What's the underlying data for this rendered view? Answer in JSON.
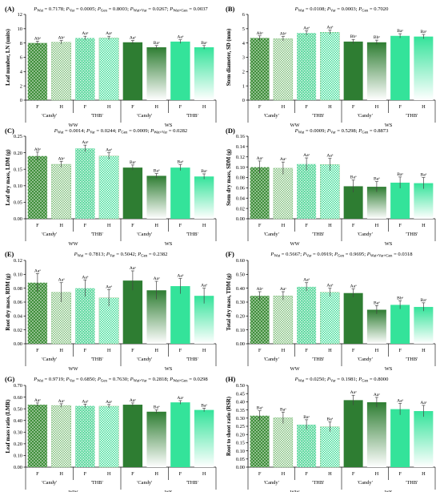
{
  "colors": {
    "ww_dark": "#3f8f3a",
    "ww_light": "#9fd39a",
    "ws_dark": "#2e7d32",
    "ws_mint": "#34e39a",
    "pattern_dot": "#ffffff"
  },
  "category_labels": [
    "F",
    "H",
    "F",
    "H",
    "F",
    "H",
    "F",
    "H"
  ],
  "group_labels": [
    "'Candy'",
    "'THB'",
    "'Candy'",
    "'THB'"
  ],
  "treatment_labels": [
    "WW",
    "WS"
  ],
  "chart_data": [
    {
      "id": "A",
      "letter": "(A)",
      "type": "bar",
      "stats_text": "P_Wat = 0.7178; P_Var = 0.0005; P_Gen = 0.8003; P_Wat×Var = 0.0267; P_Wat×Gen = 0.0037",
      "ylabel": "Leaf number, LN (units)",
      "ylim": [
        0,
        12
      ],
      "yticks": [
        0,
        2,
        4,
        6,
        8,
        10,
        12
      ],
      "tick_labels": [
        "0",
        "2",
        "4",
        "6",
        "8",
        "10",
        "12"
      ],
      "values": [
        8.0,
        8.1,
        8.7,
        8.7,
        8.1,
        7.4,
        8.2,
        7.4
      ],
      "errors": [
        0.25,
        0.25,
        0.25,
        0.25,
        0.25,
        0.25,
        0.25,
        0.25
      ],
      "letters": [
        "Abᵃ",
        "Abᵃ",
        "Aaᵃ",
        "Aaᵃ",
        "Aaᵃ",
        "Baᵃ",
        "Aaᵃ",
        "Baᵃ"
      ]
    },
    {
      "id": "B",
      "letter": "(B)",
      "type": "bar",
      "stats_text": "P_Wat = 0.0108; P_Var = 0.0003; P_Gen = 0.7020",
      "ylabel": "Stem diameter, SD (mm)",
      "ylim": [
        0,
        6
      ],
      "yticks": [
        0,
        1,
        2,
        3,
        4,
        5,
        6
      ],
      "tick_labels": [
        "0",
        "1",
        "2",
        "3",
        "4",
        "5",
        "6"
      ],
      "values": [
        4.35,
        4.3,
        4.7,
        4.75,
        4.1,
        4.05,
        4.5,
        4.45
      ],
      "errors": [
        0.15,
        0.15,
        0.15,
        0.15,
        0.15,
        0.15,
        0.15,
        0.15
      ],
      "letters": [
        "Abᵃ",
        "Abᵃ",
        "Aaᵃ",
        "Aaᵃ",
        "Bbᵃ",
        "Bbᵃ",
        "Baᵃ",
        "Baᵃ"
      ]
    },
    {
      "id": "C",
      "letter": "(C)",
      "type": "bar",
      "stats_text": "P_Wat = 0.0014; P_Var = 0.0244; P_Gen = 0.0009; P_Wat×Var = 0.0282",
      "ylabel": "Leaf dry mass, LDM (g)",
      "ylim": [
        0,
        0.25
      ],
      "yticks": [
        0,
        0.05,
        0.1,
        0.15,
        0.2,
        0.25
      ],
      "tick_labels": [
        "0.00",
        "0.05",
        "0.10",
        "0.15",
        "0.20",
        "0.25"
      ],
      "values": [
        0.19,
        0.165,
        0.213,
        0.19,
        0.155,
        0.13,
        0.155,
        0.128
      ],
      "errors": [
        0.012,
        0.009,
        0.01,
        0.01,
        0.008,
        0.007,
        0.009,
        0.008
      ],
      "letters": [
        "Abᵃ",
        "Abᵃ",
        "Aaᵃ",
        "Aaᵃ",
        "Baᵃ",
        "Baᵃ",
        "Baᵃ",
        "Baᵃ"
      ]
    },
    {
      "id": "D",
      "letter": "(D)",
      "type": "bar",
      "stats_text": "P_Wat = 0.0009; P_Var = 0.5298; P_Gen = 0.8873",
      "ylabel": "Stem dry mass, SDM (g)",
      "ylim": [
        0,
        0.16
      ],
      "yticks": [
        0,
        0.02,
        0.04,
        0.06,
        0.08,
        0.1,
        0.12,
        0.14,
        0.16
      ],
      "tick_labels": [
        "0.00",
        "0.02",
        "0.04",
        "0.06",
        "0.08",
        "0.10",
        "0.12",
        "0.14",
        "0.16"
      ],
      "values": [
        0.1,
        0.098,
        0.106,
        0.105,
        0.063,
        0.062,
        0.07,
        0.069
      ],
      "errors": [
        0.012,
        0.012,
        0.012,
        0.012,
        0.012,
        0.01,
        0.011,
        0.011
      ],
      "letters": [
        "Aaᵃ",
        "Aaᵃ",
        "Aaᵃ",
        "Aaᵃ",
        "Baᵃ",
        "Baᵃ",
        "Baᵃ",
        "Baᵃ"
      ]
    },
    {
      "id": "E",
      "letter": "(E)",
      "type": "bar",
      "stats_text": "P_Wat = 0.7813; P_Var = 0.5042; P_Gen = 0.2382",
      "ylabel": "Root dry mass, RDM (g)",
      "ylim": [
        0,
        0.12
      ],
      "yticks": [
        0,
        0.02,
        0.04,
        0.06,
        0.08,
        0.1,
        0.12
      ],
      "tick_labels": [
        "0.00",
        "0.02",
        "0.04",
        "0.06",
        "0.08",
        "0.10",
        "0.12"
      ],
      "values": [
        0.088,
        0.074,
        0.08,
        0.066,
        0.091,
        0.077,
        0.083,
        0.069
      ],
      "errors": [
        0.013,
        0.014,
        0.012,
        0.012,
        0.014,
        0.013,
        0.011,
        0.011
      ],
      "letters": [
        "Aaᵃ",
        "Aaᵃ",
        "Aaᵃ",
        "Aaᵃ",
        "Aaᵃ",
        "Aaᵃ",
        "Aaᵃ",
        "Aaᵃ"
      ]
    },
    {
      "id": "F",
      "letter": "(F)",
      "type": "bar",
      "stats_text": "P_Wat = 0.5667; P_Var = 0.0919; P_Gen = 0.9695; P_Wat×Var×Gen = 0.0318",
      "ylabel": "Total dry mass, TDM (g)",
      "ylim": [
        0,
        0.6
      ],
      "yticks": [
        0,
        0.1,
        0.2,
        0.3,
        0.4,
        0.5,
        0.6
      ],
      "tick_labels": [
        "0.00",
        "0.10",
        "0.20",
        "0.30",
        "0.40",
        "0.50",
        "0.60"
      ],
      "values": [
        0.345,
        0.345,
        0.41,
        0.37,
        0.365,
        0.245,
        0.28,
        0.265
      ],
      "errors": [
        0.03,
        0.03,
        0.03,
        0.03,
        0.03,
        0.03,
        0.03,
        0.03
      ],
      "letters": [
        "Abᵃ",
        "Aaᵃ",
        "Aaᵃ",
        "Aaᵃ",
        "Aaᵃ",
        "Baᵃ",
        "Bbᵃ",
        "Baᵃ"
      ]
    },
    {
      "id": "G",
      "letter": "(G)",
      "type": "bar",
      "stats_text": "P_Wat = 0.9719; P_Var = 0.6850; P_Gen = 0.7630; P_Wat×Var = 0.2818; P_Wat×Gen = 0.0298",
      "ylabel": "Leaf mass ratio (LMR)",
      "ylim": [
        0,
        0.7
      ],
      "yticks": [
        0,
        0.1,
        0.2,
        0.3,
        0.4,
        0.5,
        0.6,
        0.7
      ],
      "tick_labels": [
        "0.00",
        "0.10",
        "0.20",
        "0.30",
        "0.40",
        "0.50",
        "0.60",
        "0.70"
      ],
      "values": [
        0.535,
        0.528,
        0.525,
        0.522,
        0.535,
        0.475,
        0.555,
        0.49
      ],
      "errors": [
        0.015,
        0.015,
        0.015,
        0.015,
        0.015,
        0.015,
        0.015,
        0.015
      ],
      "letters": [
        "Aaᵃ",
        "Aaᵃ",
        "Aaᵃ",
        "Aaᵃ",
        "Aaᵃ",
        "Baᵃ",
        "Aaᵃ",
        "Baᵃ"
      ]
    },
    {
      "id": "H",
      "letter": "(H)",
      "type": "bar",
      "stats_text": "P_Wat = 0.0250; P_Var = 0.1981; P_Gen = 0.8000",
      "ylabel": "Root to shoot ratio (RSR)",
      "ylim": [
        0,
        0.5
      ],
      "yticks": [
        0,
        0.05,
        0.1,
        0.15,
        0.2,
        0.25,
        0.3,
        0.35,
        0.4,
        0.45,
        0.5
      ],
      "tick_labels": [
        "0.00",
        "0.05",
        "0.10",
        "0.15",
        "0.20",
        "0.25",
        "0.30",
        "0.35",
        "0.40",
        "0.45",
        "0.50"
      ],
      "values": [
        0.315,
        0.302,
        0.26,
        0.247,
        0.41,
        0.397,
        0.355,
        0.343
      ],
      "errors": [
        0.03,
        0.035,
        0.03,
        0.03,
        0.03,
        0.03,
        0.035,
        0.035
      ],
      "letters": [
        "Baᵃ",
        "Baᵃ",
        "Baᵃ",
        "Baᵃ",
        "Aaᵃ",
        "Aaᵃ",
        "Aaᵃ",
        "Aaᵃ"
      ]
    }
  ]
}
